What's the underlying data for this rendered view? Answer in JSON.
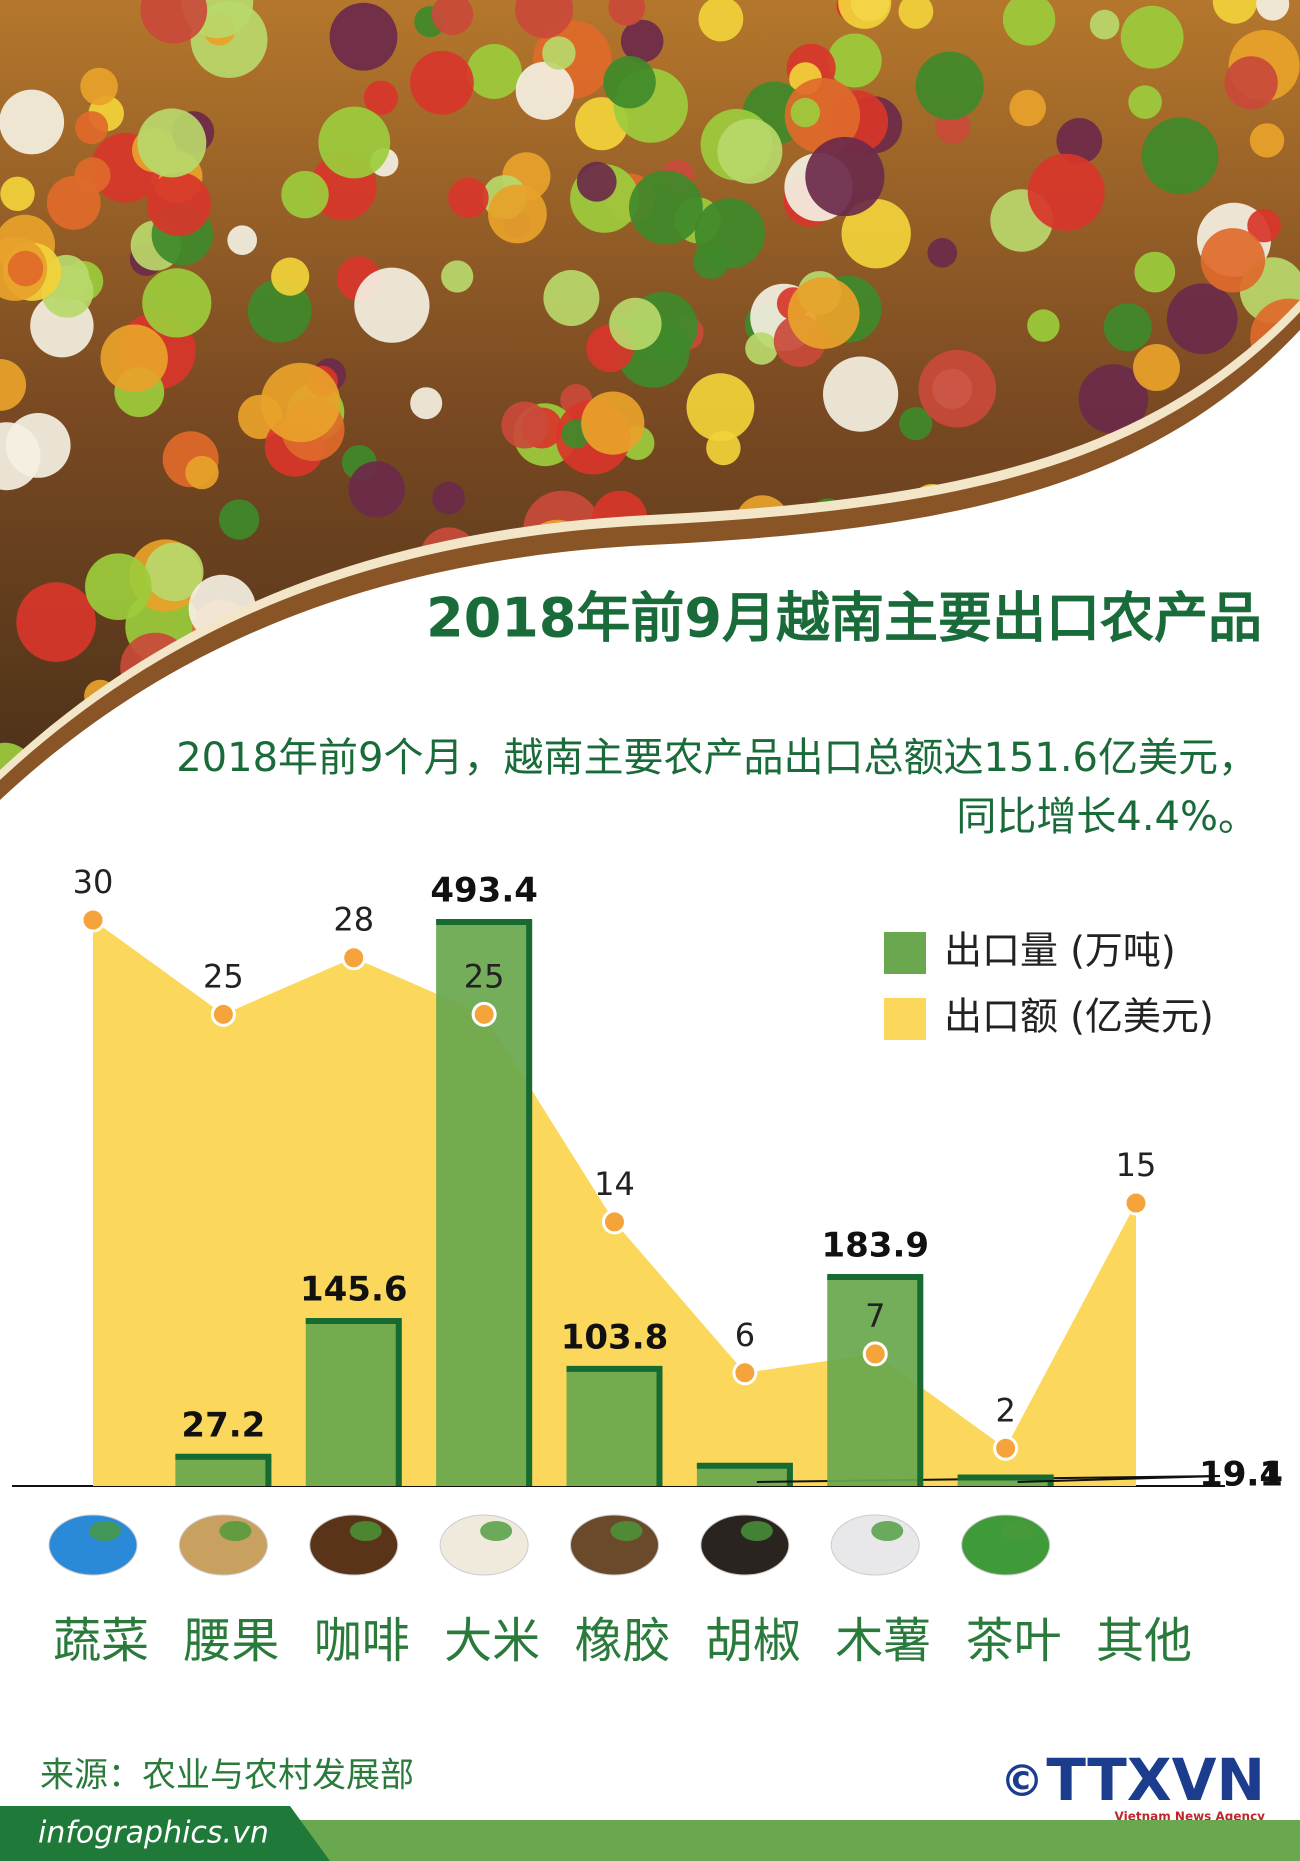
{
  "chart_data": {
    "type": "combo",
    "title": "2018年前9月越南主要出口农产品",
    "subtitle": [
      "2018年前9个月，越南主要农产品出口总额达151.6亿美元，",
      "同比增长4.4%。"
    ],
    "categories": [
      "蔬菜",
      "腰果",
      "咖啡",
      "大米",
      "橡胶",
      "胡椒",
      "木薯",
      "茶叶",
      "其他"
    ],
    "series": [
      {
        "name": "出口量 (万吨)",
        "type": "bar",
        "color": "#6aa84f",
        "values": [
          null,
          27.2,
          145.6,
          493.4,
          103.8,
          19.4,
          183.9,
          9.1,
          null
        ]
      },
      {
        "name": "出口额 (亿美元)",
        "type": "area",
        "color": "#fbd75b",
        "marker_color": "#f5a33b",
        "values": [
          30,
          25,
          28,
          25,
          14,
          6,
          7,
          2,
          15
        ]
      }
    ]
  },
  "footer": {
    "source": "来源：农业与农村发展部",
    "website": "infographics.vn",
    "logo": "TTXVN",
    "logo_sub": "Vietnam News Agency"
  }
}
